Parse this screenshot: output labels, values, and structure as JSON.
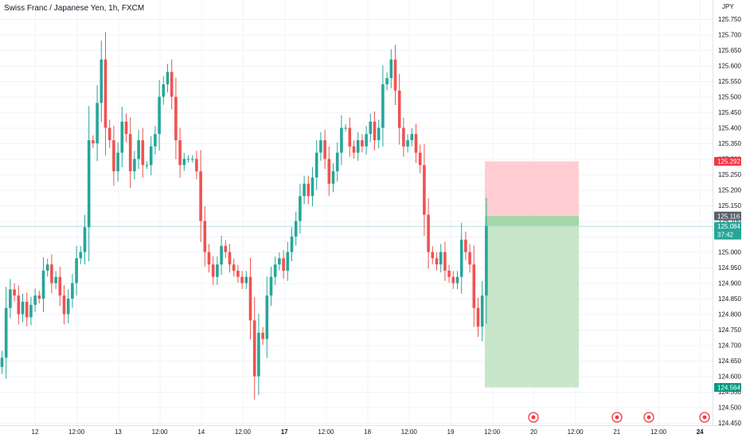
{
  "header": {
    "title": "Swiss Franc / Japanese Yen, 1h, FXCM"
  },
  "price_axis": {
    "currency": "JPY"
  },
  "price_tags": [
    {
      "label": "125.292",
      "color": "#f23645"
    },
    {
      "label": "125.116",
      "color": "#5d606b"
    },
    {
      "label": "125.084",
      "sublabel": "37:42",
      "color": "#26a69a"
    },
    {
      "label": "124.564",
      "color": "#089981"
    }
  ],
  "colors": {
    "up": "#26a69a",
    "down": "#ef5350",
    "stop_zone": "#ffcdd2",
    "target_zone": "#c8e6c9",
    "entry_band": "#a5d6a7"
  },
  "event_markers": [
    {
      "icon": "event-target-icon"
    },
    {
      "icon": "event-target-icon"
    },
    {
      "icon": "event-target-icon"
    },
    {
      "icon": "event-target-icon"
    }
  ],
  "chart_data": {
    "type": "candlestick",
    "title": "Swiss Franc / Japanese Yen, 1h, FXCM",
    "ylabel": "JPY",
    "ylim": [
      124.4,
      125.8
    ],
    "y_ticks": [
      "125.750",
      "125.700",
      "125.650",
      "125.600",
      "125.550",
      "125.500",
      "125.450",
      "125.400",
      "125.350",
      "125.300",
      "125.250",
      "125.200",
      "125.150",
      "125.100",
      "125.050",
      "125.000",
      "124.950",
      "124.900",
      "124.850",
      "124.800",
      "124.750",
      "124.700",
      "124.650",
      "124.600",
      "124.550",
      "124.500",
      "124.450"
    ],
    "x_ticks": [
      {
        "label": "12",
        "day": false
      },
      {
        "label": "12:00",
        "day": false
      },
      {
        "label": "13",
        "day": false
      },
      {
        "label": "12:00",
        "day": false
      },
      {
        "label": "14",
        "day": false
      },
      {
        "label": "12:00",
        "day": false
      },
      {
        "label": "17",
        "day": true
      },
      {
        "label": "12:00",
        "day": false
      },
      {
        "label": "18",
        "day": false
      },
      {
        "label": "12:00",
        "day": false
      },
      {
        "label": "19",
        "day": false
      },
      {
        "label": "12:00",
        "day": false
      },
      {
        "label": "20",
        "day": false
      },
      {
        "label": "12:00",
        "day": false
      },
      {
        "label": "21",
        "day": false
      },
      {
        "label": "12:00",
        "day": false
      },
      {
        "label": "24",
        "day": true
      }
    ],
    "position": {
      "type": "short",
      "entry": 125.116,
      "stop": 125.292,
      "target": 124.564
    },
    "last_price": 125.084,
    "closes": [
      124.66,
      124.82,
      124.88,
      124.86,
      124.8,
      124.84,
      124.79,
      124.83,
      124.86,
      124.85,
      124.94,
      124.96,
      124.9,
      124.92,
      124.86,
      124.8,
      124.85,
      124.9,
      124.98,
      125.0,
      125.08,
      125.36,
      125.35,
      125.48,
      125.62,
      125.4,
      125.36,
      125.26,
      125.32,
      125.42,
      125.38,
      125.26,
      125.3,
      125.36,
      125.28,
      125.28,
      125.34,
      125.38,
      125.5,
      125.54,
      125.58,
      125.5,
      125.36,
      125.28,
      125.3,
      125.3,
      125.3,
      125.26,
      125.1,
      125.0,
      124.96,
      124.92,
      124.96,
      125.02,
      125.0,
      124.96,
      124.94,
      124.92,
      124.9,
      124.92,
      124.78,
      124.6,
      124.74,
      124.72,
      124.86,
      124.92,
      124.96,
      124.98,
      124.94,
      125.0,
      125.05,
      125.1,
      125.18,
      125.22,
      125.18,
      125.24,
      125.32,
      125.36,
      125.3,
      125.22,
      125.26,
      125.32,
      125.4,
      125.4,
      125.34,
      125.32,
      125.36,
      125.34,
      125.38,
      125.42,
      125.36,
      125.4,
      125.54,
      125.56,
      125.62,
      125.52,
      125.4,
      125.34,
      125.36,
      125.38,
      125.32,
      125.28,
      125.12,
      125.0,
      124.98,
      124.96,
      125.0,
      124.94,
      124.92,
      124.9,
      124.92,
      125.04,
      125.0,
      124.96,
      124.82,
      124.76,
      124.86,
      125.084
    ]
  }
}
